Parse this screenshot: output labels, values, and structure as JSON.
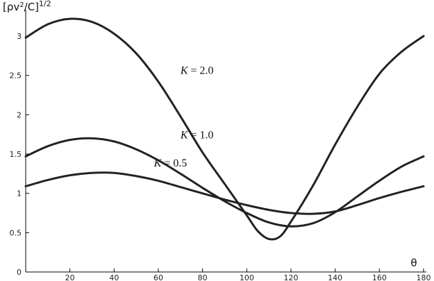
{
  "chart_data": {
    "type": "line",
    "xlabel": "θ",
    "ylabel": "[ρv²/C]^1/2",
    "ylabel_parts": {
      "main": "[ρv",
      "sq": "2",
      "rest": "/C]",
      "sup": "1/2"
    },
    "xlim": [
      0,
      180
    ],
    "ylim": [
      0,
      3.3
    ],
    "x_ticks": [
      20,
      40,
      60,
      80,
      100,
      120,
      140,
      160,
      180
    ],
    "x_tick_labels": [
      "20",
      "40",
      "60",
      "80",
      "100",
      "120",
      "140",
      "160",
      "180"
    ],
    "y_ticks": [
      0,
      0.5,
      1,
      1.5,
      2,
      2.5,
      3
    ],
    "y_tick_labels": [
      "0",
      "0.5",
      "1",
      "1.5",
      "2",
      "2.5",
      "3"
    ],
    "grid": false,
    "series": [
      {
        "name": "K = 2.0",
        "x": [
          0,
          10,
          20,
          30,
          40,
          50,
          60,
          70,
          80,
          90,
          100,
          105,
          110,
          115,
          120,
          130,
          140,
          150,
          160,
          170,
          180
        ],
        "y": [
          2.98,
          3.15,
          3.22,
          3.18,
          3.03,
          2.78,
          2.42,
          1.98,
          1.52,
          1.12,
          0.72,
          0.52,
          0.42,
          0.45,
          0.64,
          1.1,
          1.62,
          2.1,
          2.52,
          2.8,
          3.0
        ]
      },
      {
        "name": "K = 1.0",
        "x": [
          0,
          10,
          20,
          30,
          40,
          50,
          60,
          70,
          80,
          90,
          100,
          110,
          120,
          130,
          140,
          150,
          160,
          170,
          180
        ],
        "y": [
          1.47,
          1.6,
          1.68,
          1.7,
          1.66,
          1.56,
          1.42,
          1.25,
          1.07,
          0.9,
          0.75,
          0.63,
          0.58,
          0.62,
          0.76,
          0.96,
          1.16,
          1.34,
          1.47
        ]
      },
      {
        "name": "K = 0.5",
        "x": [
          0,
          10,
          20,
          30,
          40,
          50,
          60,
          70,
          80,
          90,
          100,
          110,
          120,
          130,
          140,
          150,
          160,
          170,
          180
        ],
        "y": [
          1.09,
          1.17,
          1.23,
          1.26,
          1.26,
          1.22,
          1.16,
          1.08,
          1.0,
          0.92,
          0.85,
          0.79,
          0.75,
          0.74,
          0.77,
          0.85,
          0.94,
          1.02,
          1.09
        ]
      }
    ],
    "annotations": [
      {
        "text": "K = 2.0",
        "series": 0,
        "x": 70,
        "y": 2.52
      },
      {
        "text": "K = 1.0",
        "series": 1,
        "x": 70,
        "y": 1.7
      },
      {
        "text": "K = 0.5",
        "series": 2,
        "x": 58,
        "y": 1.34
      }
    ]
  }
}
